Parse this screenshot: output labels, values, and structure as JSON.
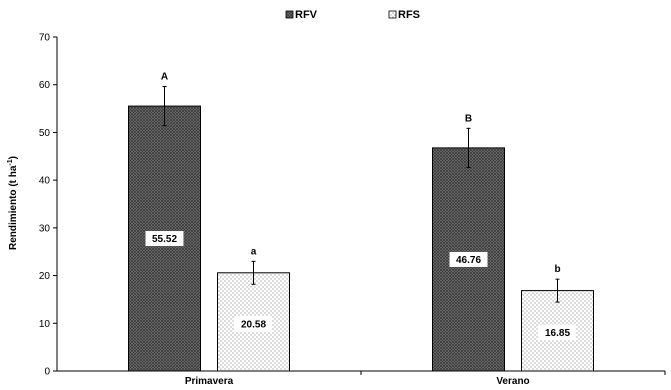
{
  "chart_data": {
    "type": "bar",
    "title": "",
    "xlabel": "",
    "ylabel": "Rendimiento (t ha",
    "ylabel_superscript": "-1",
    "ylabel_suffix": ")",
    "ylim": [
      0,
      70
    ],
    "yticks": [
      0,
      10,
      20,
      30,
      40,
      50,
      60,
      70
    ],
    "grid": false,
    "legend_position": "top-center",
    "categories": [
      "Primavera",
      "Verano"
    ],
    "series": [
      {
        "name": "RFV",
        "values": [
          55.52,
          46.76
        ],
        "errors": [
          4.1,
          4.1
        ],
        "value_labels": [
          "55.52",
          "46.76"
        ],
        "significance_labels": [
          "A",
          "B"
        ],
        "pattern": "crosshatch-dark"
      },
      {
        "name": "RFS",
        "values": [
          20.58,
          16.85
        ],
        "errors": [
          2.4,
          2.4
        ],
        "value_labels": [
          "20.58",
          "16.85"
        ],
        "significance_labels": [
          "a",
          "b"
        ],
        "pattern": "dotted-light"
      }
    ]
  }
}
